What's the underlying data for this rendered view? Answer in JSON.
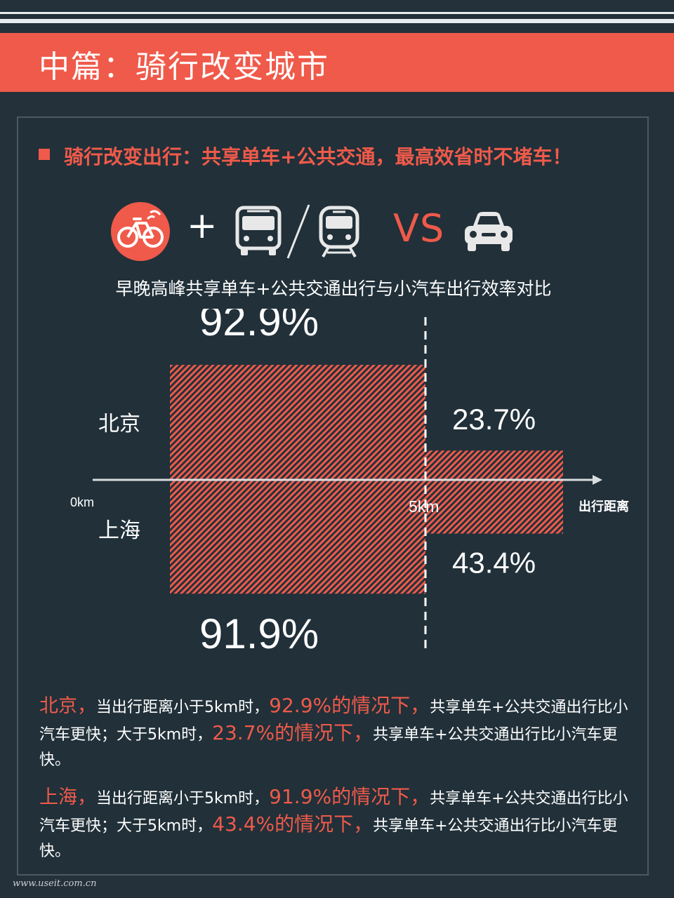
{
  "header": {
    "title": "中篇：骑行改变城市"
  },
  "section": {
    "subtitle": "骑行改变出行：共享单车+公共交通，最高效省时不堵车！"
  },
  "icons": {
    "bike": "bicycle-icon",
    "plus": "+",
    "bus": "bus-icon",
    "train": "train-icon",
    "vs": "VS",
    "car": "car-icon"
  },
  "colors": {
    "accent": "#ef5a4a",
    "background": "#24313a",
    "text": "#ffffff"
  },
  "chart_data": {
    "type": "bar",
    "title": "早晚高峰共享单车+公共交通出行与小汽车出行效率对比",
    "xlabel": "出行距离",
    "x_ticks": [
      "0km",
      "5km"
    ],
    "categories": [
      "<5km",
      ">5km"
    ],
    "series": [
      {
        "name": "北京",
        "values": [
          92.9,
          23.7
        ],
        "labels": [
          "92.9%",
          "23.7%"
        ]
      },
      {
        "name": "上海",
        "values": [
          91.9,
          43.4
        ],
        "labels": [
          "91.9%",
          "43.4%"
        ]
      }
    ],
    "ylim": [
      0,
      100
    ]
  },
  "descriptions": [
    {
      "city": "北京，",
      "p1": "当出行距离小于5km时，",
      "hl1": "92.9%的情况下，",
      "p2": "共享单车+公共交通出行比小汽车更快；大于5km时，",
      "hl2": "23.7%的情况下，",
      "p3": "共享单车+公共交通出行比小汽车更快。"
    },
    {
      "city": "上海，",
      "p1": "当出行距离小于5km时，",
      "hl1": "91.9%的情况下，",
      "p2": "共享单车+公共交通出行比小汽车更快；大于5km时，",
      "hl2": "43.4%的情况下，",
      "p3": "共享单车+公共交通出行比小汽车更快。"
    }
  ],
  "footer": {
    "url": "www.useit.com.cn"
  }
}
